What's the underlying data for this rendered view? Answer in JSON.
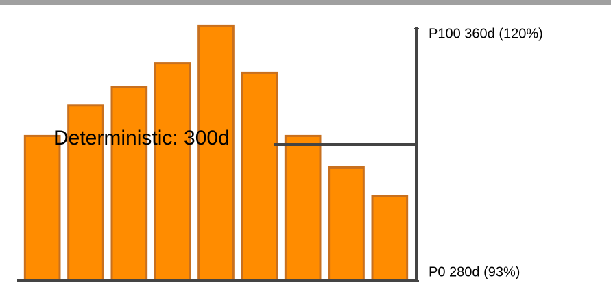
{
  "chart_data": {
    "type": "bar",
    "values": [
      326,
      335.7,
      341.5,
      349,
      361,
      346,
      326,
      316,
      307
    ],
    "color": "#ff8c00",
    "edge_color": "#c8701e",
    "ylim": [
      280,
      360
    ],
    "yticks": [
      {
        "value": 280,
        "label": "P0 280d (93%)"
      },
      {
        "value": 360,
        "label": "P100 360d (120%)"
      }
    ],
    "annotation": "Deterministic: 300d"
  }
}
